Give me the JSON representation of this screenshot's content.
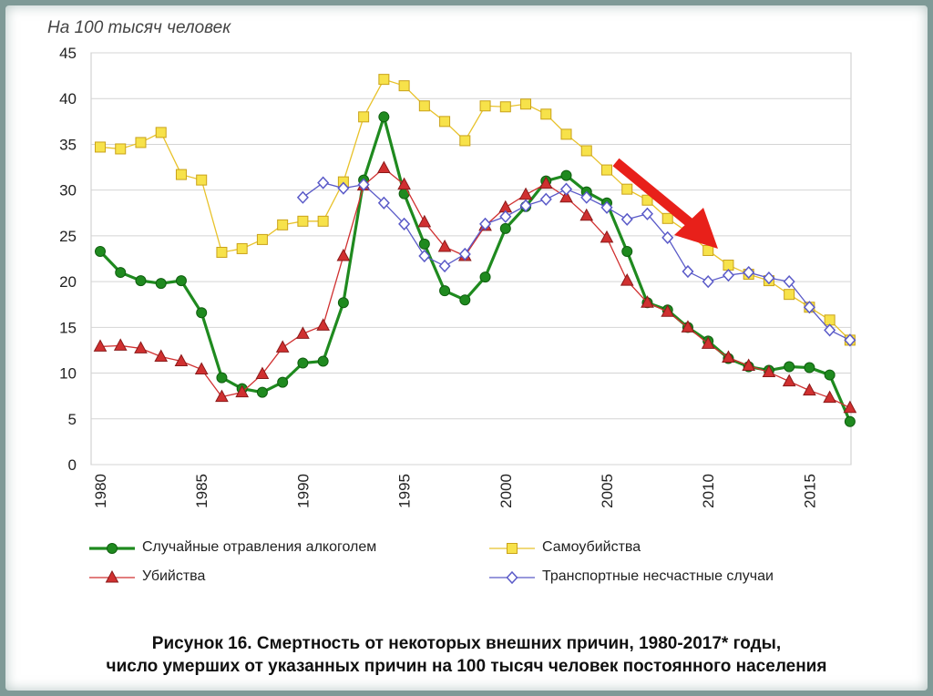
{
  "chart_data": {
    "type": "line",
    "unit_label": "На 100 тысяч человек",
    "xlim": [
      1980,
      2017
    ],
    "ylim": [
      0,
      45
    ],
    "yticks": [
      0,
      5,
      10,
      15,
      20,
      25,
      30,
      35,
      40,
      45
    ],
    "xticks": [
      1980,
      1985,
      1990,
      1995,
      2000,
      2005,
      2010,
      2015
    ],
    "grid": true,
    "legend_position": "bottom",
    "series": [
      {
        "name": "Случайные отравления алкоголем",
        "color": "#1f8a1f",
        "marker": "circle",
        "x": [
          1980,
          1981,
          1982,
          1983,
          1984,
          1985,
          1986,
          1987,
          1988,
          1989,
          1990,
          1991,
          1992,
          1993,
          1994,
          1995,
          1996,
          1997,
          1998,
          1999,
          2000,
          2001,
          2002,
          2003,
          2004,
          2005,
          2006,
          2007,
          2008,
          2009,
          2010,
          2011,
          2012,
          2013,
          2014,
          2015,
          2016,
          2017
        ],
        "y": [
          23.3,
          21.0,
          20.1,
          19.8,
          20.1,
          16.6,
          9.5,
          8.3,
          7.9,
          9.0,
          11.1,
          11.3,
          17.7,
          31.1,
          38.0,
          29.6,
          24.1,
          19.0,
          18.0,
          20.5,
          25.8,
          28.2,
          31.0,
          31.6,
          29.8,
          28.6,
          23.3,
          17.7,
          16.9,
          15.0,
          13.5,
          11.6,
          10.7,
          10.3,
          10.7,
          10.6,
          9.8,
          4.7
        ]
      },
      {
        "name": "Самоубийства",
        "color": "#e8c22a",
        "marker": "square",
        "x": [
          1980,
          1981,
          1982,
          1983,
          1984,
          1985,
          1986,
          1987,
          1988,
          1989,
          1990,
          1991,
          1992,
          1993,
          1994,
          1995,
          1996,
          1997,
          1998,
          1999,
          2000,
          2001,
          2002,
          2003,
          2004,
          2005,
          2006,
          2007,
          2008,
          2009,
          2010,
          2011,
          2012,
          2013,
          2014,
          2015,
          2016,
          2017
        ],
        "y": [
          34.7,
          34.5,
          35.2,
          36.3,
          31.7,
          31.1,
          23.2,
          23.6,
          24.6,
          26.2,
          26.6,
          26.6,
          30.9,
          38.0,
          42.1,
          41.4,
          39.2,
          37.5,
          35.4,
          39.2,
          39.1,
          39.4,
          38.3,
          36.1,
          34.3,
          32.2,
          30.1,
          28.9,
          26.9,
          25.4,
          23.4,
          21.8,
          20.8,
          20.1,
          18.6,
          17.2,
          15.8,
          13.6
        ]
      },
      {
        "name": "Убийства",
        "color": "#d03030",
        "marker": "triangle",
        "x": [
          1980,
          1981,
          1982,
          1983,
          1984,
          1985,
          1986,
          1987,
          1988,
          1989,
          1990,
          1991,
          1992,
          1993,
          1994,
          1995,
          1996,
          1997,
          1998,
          1999,
          2000,
          2001,
          2002,
          2003,
          2004,
          2005,
          2006,
          2007,
          2008,
          2009,
          2010,
          2011,
          2012,
          2013,
          2014,
          2015,
          2016,
          2017
        ],
        "y": [
          12.9,
          13.0,
          12.7,
          11.8,
          11.3,
          10.4,
          7.4,
          7.9,
          9.9,
          12.8,
          14.3,
          15.2,
          22.8,
          30.5,
          32.4,
          30.6,
          26.5,
          23.8,
          22.8,
          26.1,
          28.1,
          29.5,
          30.7,
          29.2,
          27.2,
          24.8,
          20.1,
          17.7,
          16.7,
          15.0,
          13.2,
          11.7,
          10.8,
          10.1,
          9.1,
          8.1,
          7.3,
          6.2
        ]
      },
      {
        "name": "Транспортные несчастные случаи",
        "color": "#5a5ac8",
        "marker": "diamond",
        "x": [
          1990,
          1991,
          1992,
          1993,
          1994,
          1995,
          1996,
          1997,
          1998,
          1999,
          2000,
          2001,
          2002,
          2003,
          2004,
          2005,
          2006,
          2007,
          2008,
          2009,
          2010,
          2011,
          2012,
          2013,
          2014,
          2015,
          2016,
          2017
        ],
        "y": [
          29.2,
          30.8,
          30.2,
          30.6,
          28.6,
          26.3,
          22.8,
          21.7,
          23.0,
          26.3,
          27.1,
          28.3,
          29.0,
          30.1,
          29.2,
          28.1,
          26.8,
          27.4,
          24.8,
          21.1,
          20.0,
          20.7,
          21.0,
          20.4,
          20.0,
          17.2,
          14.7,
          13.6
        ]
      }
    ]
  },
  "caption": {
    "line1": "Рисунок 16. Смертность от некоторых внешних причин, 1980-2017* годы,",
    "line2": "число умерших от указанных причин на 100 тысяч человек постоянного населения"
  },
  "annotation": {
    "arrow_color": "#e8201a"
  }
}
